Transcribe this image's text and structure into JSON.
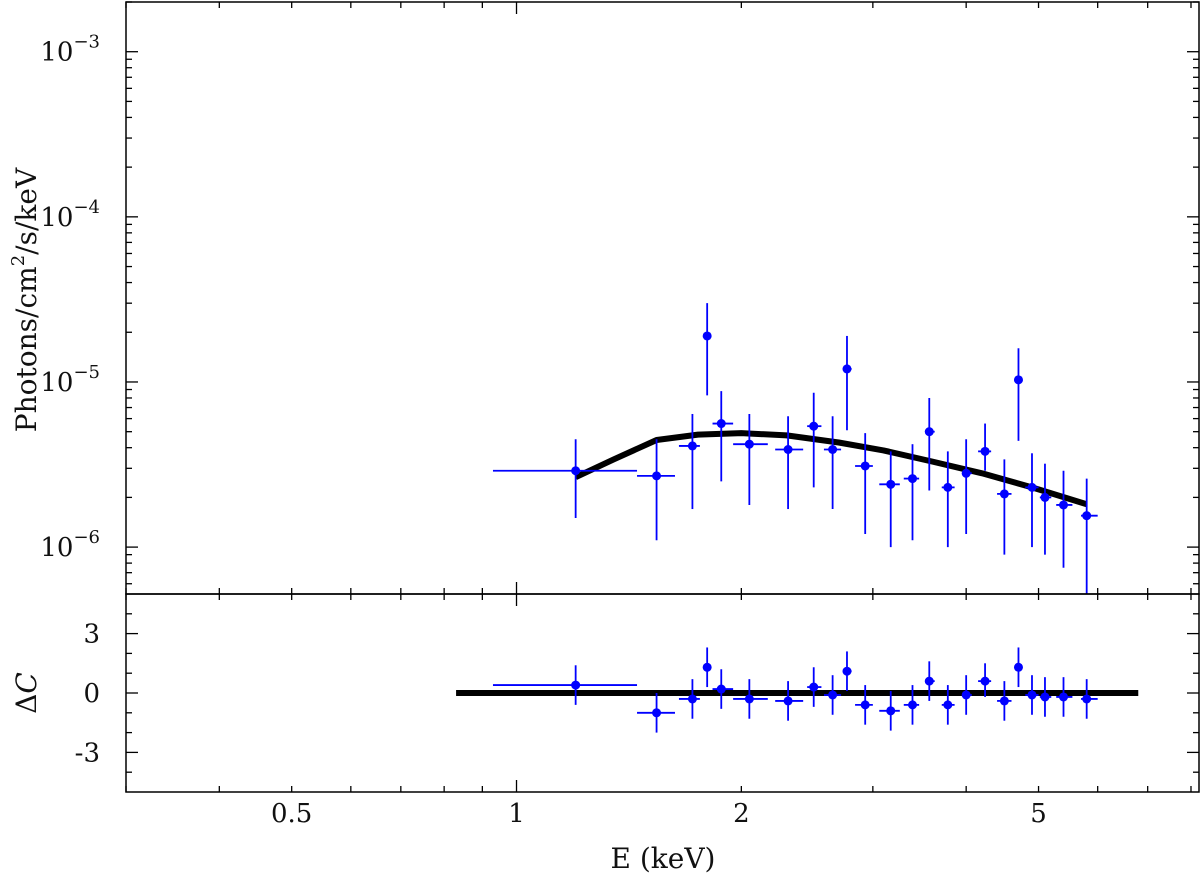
{
  "chart_data": [
    {
      "type": "scatter",
      "panel": "spectrum",
      "xlabel": "E (keV)",
      "ylabel": "Photons/cm²/s/keV",
      "ylabel_parts": {
        "base": "Photons/cm",
        "sup": "2",
        "rest": "/s/keV"
      },
      "xscale": "log",
      "yscale": "log",
      "xlim": [
        0.3,
        8.2
      ],
      "ylim": [
        5.2e-07,
        0.002
      ],
      "y_ticks": [
        {
          "value": 1e-06,
          "base": "10",
          "exp": "−6"
        },
        {
          "value": 1e-05,
          "base": "10",
          "exp": "−5"
        },
        {
          "value": 0.0001,
          "base": "10",
          "exp": "−4"
        },
        {
          "value": 0.001,
          "base": "10",
          "exp": "−3"
        }
      ],
      "data_color": "#0000ff",
      "model_color": "#000000",
      "points": [
        {
          "x": 1.2,
          "xlo": 0.93,
          "xhi": 1.45,
          "y": 2.9e-06,
          "ylo": 1.5e-06,
          "yhi": 4.5e-06
        },
        {
          "x": 1.54,
          "xlo": 1.45,
          "xhi": 1.63,
          "y": 2.7e-06,
          "ylo": 1.1e-06,
          "yhi": 4.5e-06
        },
        {
          "x": 1.72,
          "xlo": 1.65,
          "xhi": 1.76,
          "y": 4.1e-06,
          "ylo": 1.7e-06,
          "yhi": 6.4e-06
        },
        {
          "x": 1.8,
          "xlo": 1.78,
          "xhi": 1.82,
          "y": 1.9e-05,
          "ylo": 8.3e-06,
          "yhi": 3e-05
        },
        {
          "x": 1.88,
          "xlo": 1.83,
          "xhi": 1.95,
          "y": 5.6e-06,
          "ylo": 2.5e-06,
          "yhi": 8.8e-06
        },
        {
          "x": 2.05,
          "xlo": 1.95,
          "xhi": 2.17,
          "y": 4.2e-06,
          "ylo": 1.8e-06,
          "yhi": 6.4e-06
        },
        {
          "x": 2.31,
          "xlo": 2.22,
          "xhi": 2.42,
          "y": 3.9e-06,
          "ylo": 1.7e-06,
          "yhi": 6.2e-06
        },
        {
          "x": 2.5,
          "xlo": 2.45,
          "xhi": 2.56,
          "y": 5.4e-06,
          "ylo": 2.3e-06,
          "yhi": 8.6e-06
        },
        {
          "x": 2.65,
          "xlo": 2.58,
          "xhi": 2.72,
          "y": 3.9e-06,
          "ylo": 1.7e-06,
          "yhi": 6.2e-06
        },
        {
          "x": 2.77,
          "xlo": 2.74,
          "xhi": 2.81,
          "y": 1.2e-05,
          "ylo": 5.1e-06,
          "yhi": 1.9e-05
        },
        {
          "x": 2.93,
          "xlo": 2.84,
          "xhi": 3.0,
          "y": 3.1e-06,
          "ylo": 1.2e-06,
          "yhi": 4.9e-06
        },
        {
          "x": 3.17,
          "xlo": 3.06,
          "xhi": 3.26,
          "y": 2.4e-06,
          "ylo": 1e-06,
          "yhi": 3.8e-06
        },
        {
          "x": 3.39,
          "xlo": 3.3,
          "xhi": 3.46,
          "y": 2.6e-06,
          "ylo": 1.1e-06,
          "yhi": 4.2e-06
        },
        {
          "x": 3.57,
          "xlo": 3.53,
          "xhi": 3.63,
          "y": 5e-06,
          "ylo": 2.2e-06,
          "yhi": 8e-06
        },
        {
          "x": 3.78,
          "xlo": 3.71,
          "xhi": 3.86,
          "y": 2.3e-06,
          "ylo": 1e-06,
          "yhi": 3.8e-06
        },
        {
          "x": 4.0,
          "xlo": 3.95,
          "xhi": 4.07,
          "y": 2.8e-06,
          "ylo": 1.2e-06,
          "yhi": 4.5e-06
        },
        {
          "x": 4.24,
          "xlo": 4.15,
          "xhi": 4.32,
          "y": 3.8e-06,
          "ylo": 2.9e-06,
          "yhi": 5.6e-06
        },
        {
          "x": 4.5,
          "xlo": 4.4,
          "xhi": 4.6,
          "y": 2.1e-06,
          "ylo": 9e-07,
          "yhi": 3.4e-06
        },
        {
          "x": 4.7,
          "xlo": 4.66,
          "xhi": 4.75,
          "y": 1.03e-05,
          "ylo": 4.4e-06,
          "yhi": 1.6e-05
        },
        {
          "x": 4.9,
          "xlo": 4.8,
          "xhi": 5.0,
          "y": 2.3e-06,
          "ylo": 1e-06,
          "yhi": 3.7e-06
        },
        {
          "x": 5.1,
          "xlo": 5.02,
          "xhi": 5.2,
          "y": 2e-06,
          "ylo": 9e-07,
          "yhi": 3.2e-06
        },
        {
          "x": 5.4,
          "xlo": 5.28,
          "xhi": 5.55,
          "y": 1.8e-06,
          "ylo": 7.5e-07,
          "yhi": 2.9e-06
        },
        {
          "x": 5.8,
          "xlo": 5.7,
          "xhi": 6.0,
          "y": 1.55e-06,
          "ylo": 5.2e-07,
          "yhi": 2.6e-06
        }
      ],
      "model": [
        {
          "x": 1.2,
          "y": 2.65e-06
        },
        {
          "x": 1.35,
          "y": 3.4e-06
        },
        {
          "x": 1.54,
          "y": 4.45e-06
        },
        {
          "x": 1.75,
          "y": 4.8e-06
        },
        {
          "x": 2.0,
          "y": 4.9e-06
        },
        {
          "x": 2.3,
          "y": 4.75e-06
        },
        {
          "x": 2.7,
          "y": 4.3e-06
        },
        {
          "x": 3.1,
          "y": 3.85e-06
        },
        {
          "x": 3.6,
          "y": 3.3e-06
        },
        {
          "x": 4.2,
          "y": 2.8e-06
        },
        {
          "x": 4.9,
          "y": 2.3e-06
        },
        {
          "x": 5.8,
          "y": 1.82e-06
        }
      ]
    },
    {
      "type": "scatter",
      "panel": "residuals",
      "xlabel": "E (keV)",
      "ylabel": "ΔC",
      "ylabel_parts": {
        "delta": "Δ",
        "var": "C"
      },
      "xscale": "log",
      "xlim": [
        0.3,
        8.2
      ],
      "ylim": [
        -5,
        5
      ],
      "y_ticks": [
        {
          "value": 3,
          "label": "3"
        },
        {
          "value": 0,
          "label": "0"
        },
        {
          "value": -3,
          "label": "-3"
        }
      ],
      "x_ticks": [
        {
          "value": 0.5,
          "label": "0.5"
        },
        {
          "value": 1,
          "label": "1"
        },
        {
          "value": 2,
          "label": "2"
        },
        {
          "value": 5,
          "label": "5"
        }
      ],
      "zero_line": {
        "x0": 0.83,
        "x1": 6.8,
        "y": 0
      },
      "points": [
        {
          "x": 1.2,
          "xlo": 0.93,
          "xhi": 1.45,
          "y": 0.4,
          "ylo": -0.6,
          "yhi": 1.4
        },
        {
          "x": 1.54,
          "xlo": 1.45,
          "xhi": 1.63,
          "y": -1.0,
          "ylo": -2.0,
          "yhi": 0.0
        },
        {
          "x": 1.72,
          "xlo": 1.65,
          "xhi": 1.76,
          "y": -0.3,
          "ylo": -1.3,
          "yhi": 0.7
        },
        {
          "x": 1.8,
          "xlo": 1.78,
          "xhi": 1.82,
          "y": 1.3,
          "ylo": 0.3,
          "yhi": 2.3
        },
        {
          "x": 1.88,
          "xlo": 1.83,
          "xhi": 1.95,
          "y": 0.2,
          "ylo": -0.8,
          "yhi": 1.2
        },
        {
          "x": 2.05,
          "xlo": 1.95,
          "xhi": 2.17,
          "y": -0.3,
          "ylo": -1.3,
          "yhi": 0.7
        },
        {
          "x": 2.31,
          "xlo": 2.22,
          "xhi": 2.42,
          "y": -0.4,
          "ylo": -1.4,
          "yhi": 0.6
        },
        {
          "x": 2.5,
          "xlo": 2.45,
          "xhi": 2.56,
          "y": 0.3,
          "ylo": -0.7,
          "yhi": 1.3
        },
        {
          "x": 2.65,
          "xlo": 2.58,
          "xhi": 2.72,
          "y": -0.1,
          "ylo": -1.1,
          "yhi": 0.9
        },
        {
          "x": 2.77,
          "xlo": 2.74,
          "xhi": 2.81,
          "y": 1.1,
          "ylo": 0.1,
          "yhi": 2.1
        },
        {
          "x": 2.93,
          "xlo": 2.84,
          "xhi": 3.0,
          "y": -0.6,
          "ylo": -1.6,
          "yhi": 0.4
        },
        {
          "x": 3.17,
          "xlo": 3.06,
          "xhi": 3.26,
          "y": -0.9,
          "ylo": -1.9,
          "yhi": 0.1
        },
        {
          "x": 3.39,
          "xlo": 3.3,
          "xhi": 3.46,
          "y": -0.6,
          "ylo": -1.6,
          "yhi": 0.4
        },
        {
          "x": 3.57,
          "xlo": 3.53,
          "xhi": 3.63,
          "y": 0.6,
          "ylo": -0.4,
          "yhi": 1.6
        },
        {
          "x": 3.78,
          "xlo": 3.71,
          "xhi": 3.86,
          "y": -0.6,
          "ylo": -1.6,
          "yhi": 0.4
        },
        {
          "x": 4.0,
          "xlo": 3.95,
          "xhi": 4.07,
          "y": -0.1,
          "ylo": -1.1,
          "yhi": 0.9
        },
        {
          "x": 4.24,
          "xlo": 4.15,
          "xhi": 4.32,
          "y": 0.6,
          "ylo": -0.2,
          "yhi": 1.5
        },
        {
          "x": 4.5,
          "xlo": 4.4,
          "xhi": 4.6,
          "y": -0.4,
          "ylo": -1.4,
          "yhi": 0.6
        },
        {
          "x": 4.7,
          "xlo": 4.66,
          "xhi": 4.75,
          "y": 1.3,
          "ylo": 0.3,
          "yhi": 2.3
        },
        {
          "x": 4.9,
          "xlo": 4.8,
          "xhi": 5.0,
          "y": -0.1,
          "ylo": -1.1,
          "yhi": 0.9
        },
        {
          "x": 5.1,
          "xlo": 5.02,
          "xhi": 5.2,
          "y": -0.2,
          "ylo": -1.2,
          "yhi": 0.8
        },
        {
          "x": 5.4,
          "xlo": 5.28,
          "xhi": 5.55,
          "y": -0.2,
          "ylo": -1.2,
          "yhi": 0.8
        },
        {
          "x": 5.8,
          "xlo": 5.7,
          "xhi": 6.0,
          "y": -0.3,
          "ylo": -1.3,
          "yhi": 0.7
        }
      ]
    }
  ]
}
